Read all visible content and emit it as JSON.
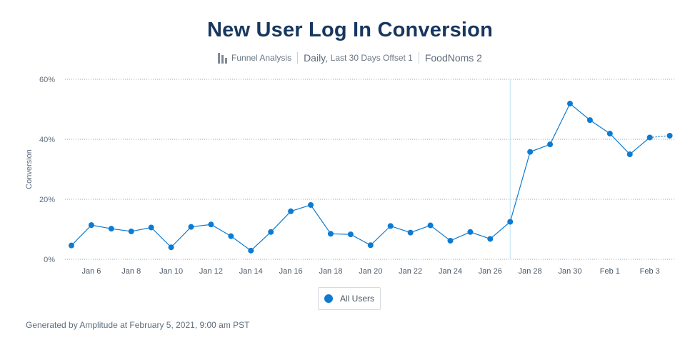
{
  "header": {
    "title": "New User Log In Conversion",
    "chart_kind": "Funnel Analysis",
    "interval_prefix": "Daily,",
    "interval_range": "Last 30 Days Offset 1",
    "project": "FoodNoms 2"
  },
  "footer": {
    "text": "Generated by Amplitude at February 5, 2021, 9:00 am PST"
  },
  "colors": {
    "series": "#0d7bd1",
    "grid": "#9aa4ae",
    "marker_line": "#bfe0f0"
  },
  "chart_data": {
    "type": "line",
    "title": "New User Log In Conversion",
    "ylabel": "Conversion",
    "xlabel": "",
    "ylim": [
      0,
      60
    ],
    "y_ticks": [
      0,
      20,
      40,
      60
    ],
    "y_tick_labels": [
      "0%",
      "20%",
      "40%",
      "60%"
    ],
    "x": [
      "Jan 5",
      "Jan 6",
      "Jan 7",
      "Jan 8",
      "Jan 9",
      "Jan 10",
      "Jan 11",
      "Jan 12",
      "Jan 13",
      "Jan 14",
      "Jan 15",
      "Jan 16",
      "Jan 17",
      "Jan 18",
      "Jan 19",
      "Jan 20",
      "Jan 21",
      "Jan 22",
      "Jan 23",
      "Jan 24",
      "Jan 25",
      "Jan 26",
      "Jan 27",
      "Jan 28",
      "Jan 29",
      "Jan 30",
      "Jan 31",
      "Feb 1",
      "Feb 2",
      "Feb 3",
      "Feb 4"
    ],
    "x_tick_labels": [
      "Jan 6",
      "Jan 8",
      "Jan 10",
      "Jan 12",
      "Jan 14",
      "Jan 16",
      "Jan 18",
      "Jan 20",
      "Jan 22",
      "Jan 24",
      "Jan 26",
      "Jan 28",
      "Jan 30",
      "Feb 1",
      "Feb 3"
    ],
    "series": [
      {
        "name": "All Users",
        "values": [
          4.6,
          11.4,
          10.2,
          9.3,
          10.6,
          4.0,
          10.8,
          11.6,
          7.7,
          2.9,
          9.1,
          16.0,
          18.1,
          8.5,
          8.3,
          4.7,
          11.1,
          8.9,
          11.3,
          6.2,
          9.1,
          6.8,
          12.5,
          35.8,
          38.3,
          51.9,
          46.4,
          41.9,
          35.0,
          40.6,
          41.2
        ]
      }
    ],
    "incomplete_from": "Feb 3",
    "marker_date": "Jan 27",
    "grid": true,
    "legend": "bottom-center"
  }
}
